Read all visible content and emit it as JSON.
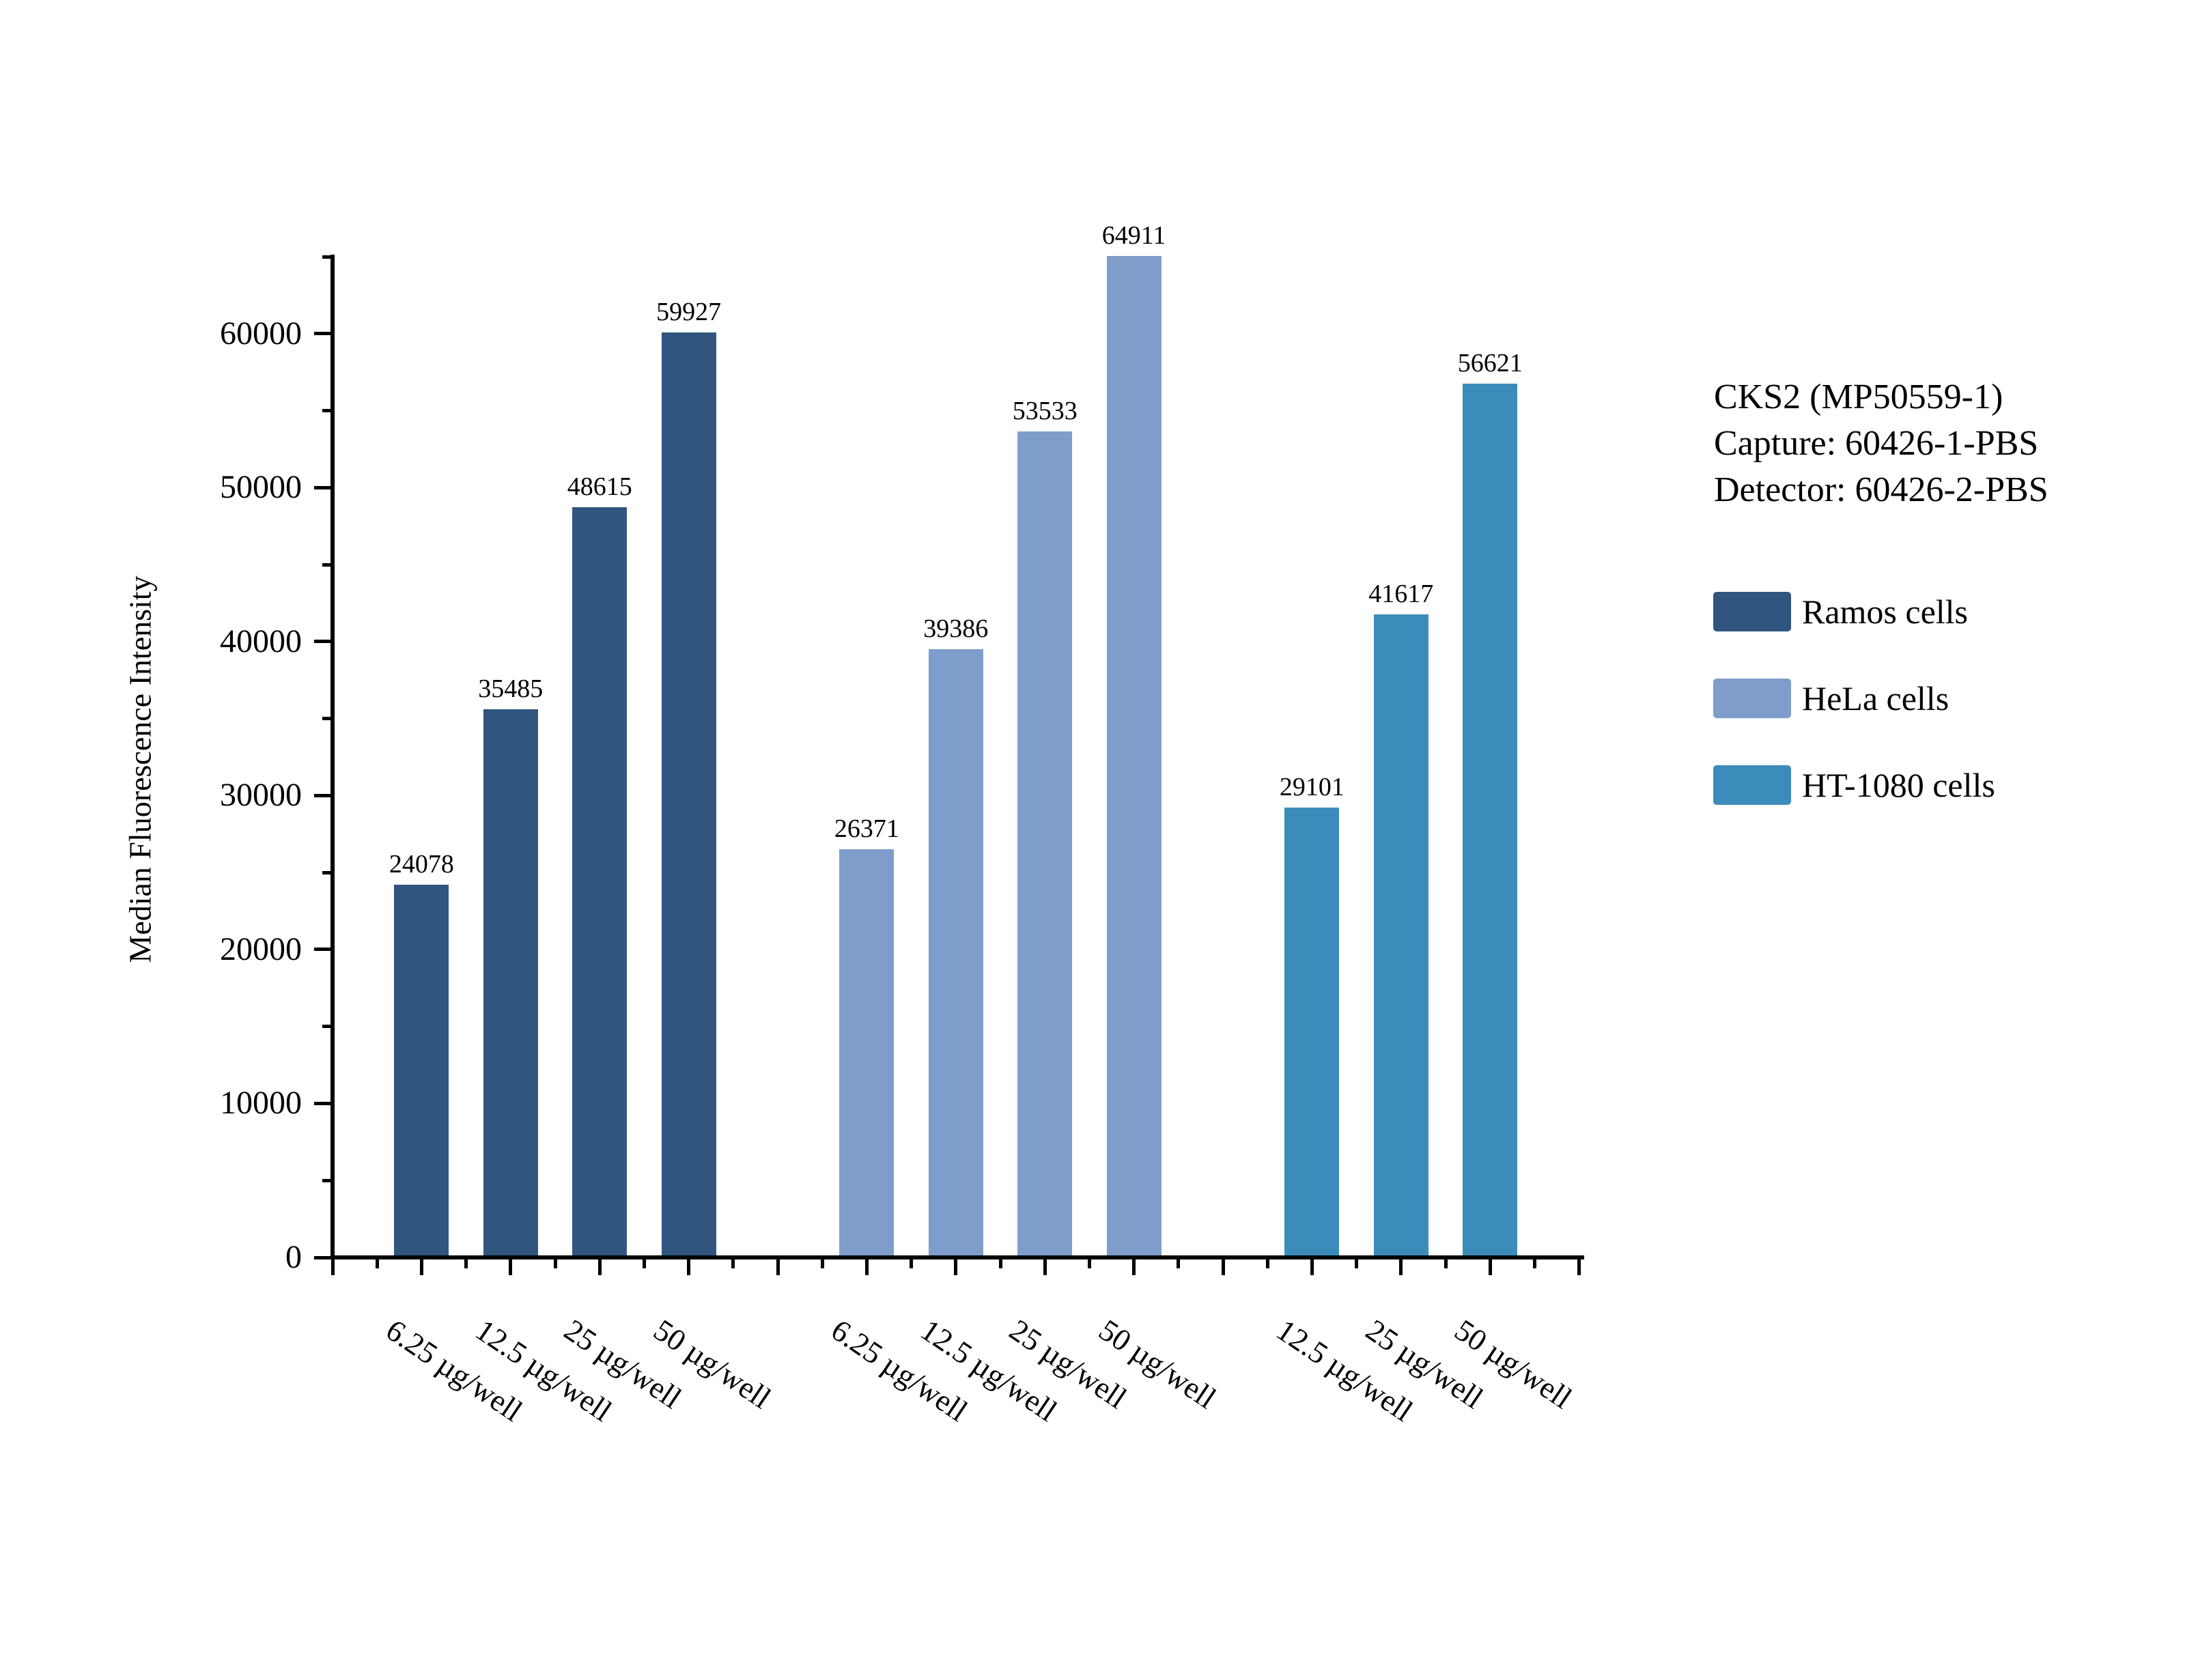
{
  "page": {
    "background": "#FFFFFF"
  },
  "chart_data": {
    "type": "bar",
    "title": "",
    "ylabel": "Median Fluorescence Intensity",
    "xlabel": "",
    "ylim": [
      0,
      65000
    ],
    "y_major_step": 10000,
    "y_minor_step": 5000,
    "grid": false,
    "legend_position": "right",
    "bar_color_axis": "#000000",
    "series": [
      {
        "name": "Ramos cells",
        "color": "#30557F",
        "categories": [
          "6.25 µg/well",
          "12.5 µg/well",
          "25 µg/well",
          "50 µg/well"
        ],
        "values": [
          24078,
          35485,
          48615,
          59927
        ]
      },
      {
        "name": "HeLa cells",
        "color": "#7E9DCA",
        "categories": [
          "6.25 µg/well",
          "12.5 µg/well",
          "25 µg/well",
          "50 µg/well"
        ],
        "values": [
          26371,
          39386,
          53533,
          64911
        ]
      },
      {
        "name": "HT-1080 cells",
        "color": "#3C8CBB",
        "categories": [
          "12.5 µg/well",
          "25 µg/well",
          "50 µg/well"
        ],
        "values": [
          29101,
          41617,
          56621
        ]
      }
    ],
    "annotation": [
      "CKS2 (MP50559-1)",
      "Capture: 60426-1-PBS",
      "Detector: 60426-2-PBS"
    ],
    "legend": [
      {
        "label": "Ramos cells",
        "color": "#30557F"
      },
      {
        "label": "HeLa cells",
        "color": "#7E9DCA"
      },
      {
        "label": "HT-1080 cells",
        "color": "#3C8CBB"
      }
    ]
  }
}
